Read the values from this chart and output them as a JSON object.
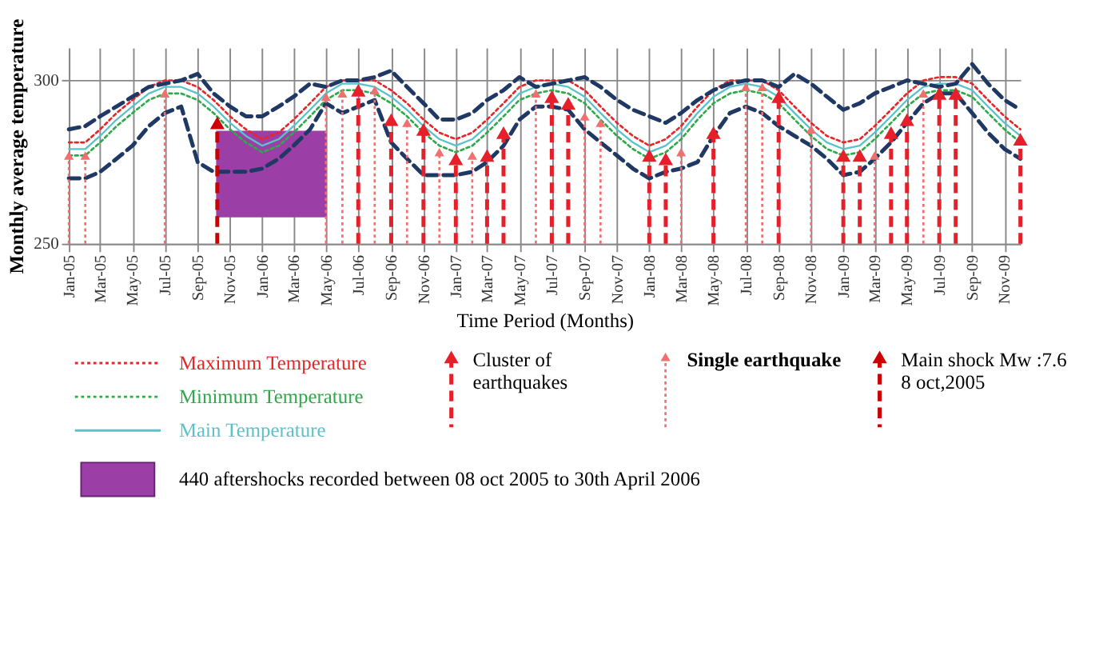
{
  "chart_data": {
    "type": "line",
    "xlabel": "Time Period (Months)",
    "ylabel": "Monthly average temperature",
    "x": [
      "2005-01",
      "2005-02",
      "2005-03",
      "2005-04",
      "2005-05",
      "2005-06",
      "2005-07",
      "2005-08",
      "2005-09",
      "2005-10",
      "2005-11",
      "2005-12",
      "2006-01",
      "2006-02",
      "2006-03",
      "2006-04",
      "2006-05",
      "2006-06",
      "2006-07",
      "2006-08",
      "2006-09",
      "2006-10",
      "2006-11",
      "2006-12",
      "2007-01",
      "2007-02",
      "2007-03",
      "2007-04",
      "2007-05",
      "2007-06",
      "2007-07",
      "2007-08",
      "2007-09",
      "2007-10",
      "2007-11",
      "2007-12",
      "2008-01",
      "2008-02",
      "2008-03",
      "2008-04",
      "2008-05",
      "2008-06",
      "2008-07",
      "2008-08",
      "2008-09",
      "2008-10",
      "2008-11",
      "2008-12",
      "2009-01",
      "2009-02",
      "2009-03",
      "2009-04",
      "2009-05",
      "2009-06",
      "2009-07",
      "2009-08",
      "2009-09",
      "2009-10",
      "2009-11",
      "2009-12"
    ],
    "series": [
      {
        "name": "Maximum Temperature",
        "type": "line",
        "line_style": "dotted",
        "color": "#e8262a",
        "values": [
          281,
          281,
          285,
          290,
          294,
          298,
          300,
          300,
          298,
          294,
          289,
          285,
          282,
          284,
          288,
          293,
          298,
          300,
          300,
          300,
          297,
          293,
          288,
          284,
          282,
          284,
          288,
          293,
          298,
          300,
          300,
          300,
          297,
          292,
          287,
          283,
          280,
          282,
          286,
          292,
          297,
          300,
          300,
          300,
          297,
          292,
          287,
          283,
          281,
          282,
          286,
          291,
          296,
          300,
          301,
          301,
          299,
          294,
          289,
          285
        ]
      },
      {
        "name": "Minimum Temperature",
        "type": "line",
        "line_style": "dotted",
        "color": "#2eaa4a",
        "values": [
          277,
          277,
          281,
          286,
          290,
          294,
          296,
          296,
          294,
          290,
          285,
          281,
          278,
          280,
          284,
          289,
          294,
          297,
          297,
          296,
          293,
          289,
          284,
          280,
          278,
          280,
          284,
          289,
          294,
          296,
          297,
          296,
          293,
          288,
          283,
          279,
          276,
          278,
          282,
          288,
          293,
          296,
          297,
          296,
          293,
          288,
          283,
          279,
          277,
          278,
          282,
          287,
          292,
          296,
          297,
          297,
          295,
          290,
          285,
          281
        ]
      },
      {
        "name": "Main Temperature",
        "type": "line",
        "line_style": "solid",
        "color": "#59c3c9",
        "values": [
          279,
          279,
          283,
          288,
          292,
          296,
          298,
          298,
          296,
          292,
          287,
          283,
          280,
          282,
          286,
          291,
          296,
          299,
          299,
          298,
          295,
          291,
          286,
          282,
          280,
          282,
          286,
          291,
          296,
          298,
          299,
          298,
          295,
          290,
          285,
          281,
          278,
          280,
          284,
          290,
          295,
          298,
          299,
          298,
          295,
          290,
          285,
          281,
          279,
          280,
          284,
          289,
          294,
          298,
          299,
          299,
          297,
          292,
          287,
          283
        ]
      },
      {
        "type": "line",
        "line_style": "dashed",
        "color": "#1f3864",
        "values": [
          285,
          286,
          289,
          292,
          295,
          298,
          299,
          300,
          302,
          296,
          292,
          289,
          289,
          292,
          295,
          299,
          298,
          300,
          300,
          301,
          303,
          298,
          293,
          288,
          288,
          290,
          294,
          297,
          301,
          298,
          299,
          300,
          301,
          298,
          294,
          291,
          289,
          287,
          290,
          294,
          297,
          299,
          300,
          300,
          298,
          302,
          299,
          295,
          291,
          293,
          296,
          298,
          300,
          299,
          298,
          299,
          305,
          299,
          294,
          291
        ]
      },
      {
        "type": "line",
        "line_style": "dashed",
        "color": "#1f3864",
        "values": [
          270,
          270,
          272,
          276,
          280,
          286,
          290,
          292,
          275,
          272,
          272,
          272,
          273,
          276,
          280,
          285,
          293,
          290,
          292,
          294,
          281,
          276,
          271,
          271,
          271,
          272,
          275,
          280,
          288,
          292,
          292,
          291,
          285,
          281,
          277,
          273,
          270,
          272,
          273,
          275,
          283,
          290,
          292,
          290,
          286,
          283,
          280,
          276,
          271,
          272,
          276,
          281,
          287,
          293,
          296,
          296,
          290,
          284,
          279,
          276
        ]
      },
      {
        "name": "Cluster of earthquakes",
        "type": "lollipop",
        "line_style": "dashed",
        "marker": "triangle",
        "color": "#e5202a",
        "x": [
          "2006-07",
          "2006-09",
          "2006-11",
          "2007-01",
          "2007-03",
          "2007-04",
          "2007-07",
          "2007-08",
          "2008-01",
          "2008-02",
          "2008-05",
          "2008-09",
          "2009-01",
          "2009-02",
          "2009-04",
          "2009-05",
          "2009-07",
          "2009-08",
          "2009-12"
        ],
        "values": [
          297,
          288,
          285,
          276,
          277,
          284,
          295,
          293,
          277,
          276,
          284,
          295,
          277,
          277,
          284,
          288,
          296,
          296,
          282
        ]
      },
      {
        "name": "Single earthquake",
        "type": "lollipop",
        "line_style": "dotted",
        "marker": "triangle",
        "color": "#f07070",
        "x": [
          "2005-01",
          "2005-02",
          "2005-07",
          "2006-05",
          "2006-06",
          "2006-08",
          "2006-10",
          "2006-12",
          "2007-02",
          "2007-06",
          "2007-09",
          "2007-10",
          "2008-03",
          "2008-07",
          "2008-08",
          "2008-11",
          "2009-03",
          "2009-06"
        ],
        "values": [
          277,
          277,
          296,
          295,
          296,
          297,
          287,
          278,
          277,
          296,
          289,
          287,
          278,
          298,
          298,
          285,
          277,
          296
        ]
      },
      {
        "name": "Main shock Mw :7.6 8 oct,2005",
        "type": "lollipop",
        "line_style": "dashed",
        "marker": "triangle",
        "color": "#cc0000",
        "x": [
          "2005-10-08"
        ],
        "values": [
          287
        ]
      }
    ],
    "bands": [
      {
        "axis": "x",
        "from": "2005-10-08",
        "to": "2006-04-30",
        "label": "440 aftershocks recorded between 08 oct 2005 to 30th April 2006",
        "color": "#9b3fa6"
      }
    ],
    "xlim": [
      "2005-01",
      "2009-12"
    ],
    "xticks": [
      {
        "value": "2005-01",
        "label": "Jan-05"
      },
      {
        "value": "2005-03",
        "label": "Mar-05"
      },
      {
        "value": "2005-05",
        "label": "May-05"
      },
      {
        "value": "2005-07",
        "label": "Jul-05"
      },
      {
        "value": "2005-09",
        "label": "Sep-05"
      },
      {
        "value": "2005-11",
        "label": "Nov-05"
      },
      {
        "value": "2006-01",
        "label": "Jan-06"
      },
      {
        "value": "2006-03",
        "label": "Mar-06"
      },
      {
        "value": "2006-05",
        "label": "May-06"
      },
      {
        "value": "2006-07",
        "label": "Jul-06"
      },
      {
        "value": "2006-09",
        "label": "Sep-06"
      },
      {
        "value": "2006-11",
        "label": "Nov-06"
      },
      {
        "value": "2007-01",
        "label": "Jan-07"
      },
      {
        "value": "2007-03",
        "label": "Mar-07"
      },
      {
        "value": "2007-05",
        "label": "May-07"
      },
      {
        "value": "2007-07",
        "label": "Jul-07"
      },
      {
        "value": "2007-09",
        "label": "Sep-07"
      },
      {
        "value": "2007-11",
        "label": "Nov-07"
      },
      {
        "value": "2008-01",
        "label": "Jan-08"
      },
      {
        "value": "2008-03",
        "label": "Mar-08"
      },
      {
        "value": "2008-05",
        "label": "May-08"
      },
      {
        "value": "2008-07",
        "label": "Jul-08"
      },
      {
        "value": "2008-09",
        "label": "Sep-08"
      },
      {
        "value": "2008-11",
        "label": "Nov-08"
      },
      {
        "value": "2009-01",
        "label": "Jan-09"
      },
      {
        "value": "2009-03",
        "label": "Mar-09"
      },
      {
        "value": "2009-05",
        "label": "May-09"
      },
      {
        "value": "2009-07",
        "label": "Jul-09"
      },
      {
        "value": "2009-09",
        "label": "Sep-09"
      },
      {
        "value": "2009-11",
        "label": "Nov-09"
      }
    ],
    "ylim": [
      250,
      310
    ],
    "yticks": [
      250,
      300
    ],
    "grid": true,
    "legend": "bottom"
  }
}
